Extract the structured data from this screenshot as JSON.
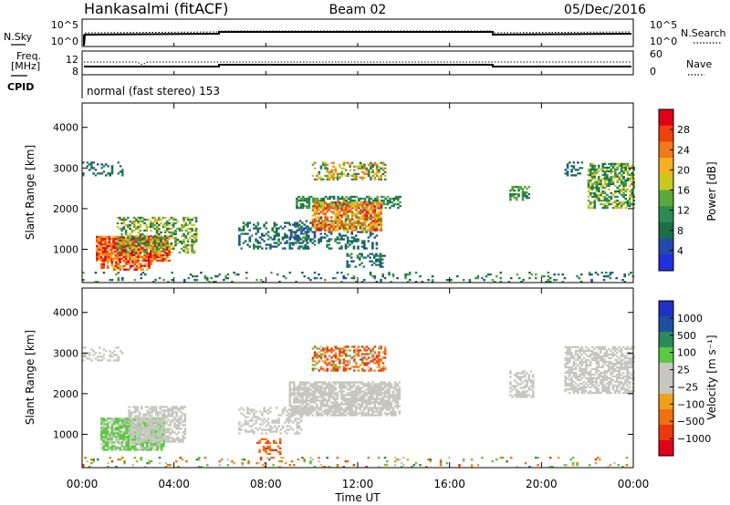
{
  "header": {
    "station": "Hankasalmi (fitACF)",
    "beam": "Beam 02",
    "date": "05/Dec/2016"
  },
  "status": {
    "nsky_label": "N.Sky",
    "nsearch_label": "N.Search",
    "freq_label_line1": "Freq.",
    "freq_label_line2": "[MHz]",
    "nave_label": "Nave",
    "cpid_label": "CPID",
    "cpid_text": "normal (fast stereo) 153",
    "nsky_ticks": [
      "10^5",
      "10^0"
    ],
    "nsearch_ticks": [
      "10^5",
      "10^0"
    ],
    "freq_ticks": [
      "12",
      "8"
    ],
    "nave_ticks": [
      "60",
      "0"
    ]
  },
  "colorbars": {
    "power": {
      "label": "Power [dB]",
      "ticks": [
        "28",
        "24",
        "20",
        "16",
        "12",
        "8",
        "4"
      ],
      "colors": [
        "#e0001a",
        "#f04010",
        "#f07a18",
        "#f5b020",
        "#c8c820",
        "#5aa83a",
        "#2d8a52",
        "#1a6f46",
        "#234aa8",
        "#2030e0"
      ]
    },
    "velocity": {
      "label": "Velocity [m s⁻¹]",
      "ticks": [
        "1000",
        "500",
        "100",
        "25",
        "−25",
        "−100",
        "−500",
        "−1000"
      ],
      "colors": [
        "#2030c8",
        "#1f4fa0",
        "#2c8a5a",
        "#5cc840",
        "#c7c7c0",
        "#c7c7c0",
        "#f0a018",
        "#f07010",
        "#e83a10",
        "#e0001a"
      ]
    }
  },
  "chart_data": {
    "type": "heatmap",
    "xlabel": "Time UT",
    "ylabel": "Slant Range [km]",
    "x_ticks": [
      "00:00",
      "04:00",
      "08:00",
      "12:00",
      "16:00",
      "20:00",
      "00:00"
    ],
    "x_range_hours": [
      0,
      24
    ],
    "y_ticks": [
      "1000",
      "2000",
      "3000",
      "4000"
    ],
    "y_range_km": [
      180,
      4600
    ],
    "panels": [
      {
        "name": "power",
        "regions": [
          {
            "t": [
              0.6,
              3.8
            ],
            "r": [
              700,
              1300
            ],
            "dens": 0.85,
            "levels": [
              18,
              30
            ]
          },
          {
            "t": [
              1.5,
              5.0
            ],
            "r": [
              900,
              1800
            ],
            "dens": 0.45,
            "levels": [
              6,
              20
            ]
          },
          {
            "t": [
              0.8,
              3.0
            ],
            "r": [
              480,
              700
            ],
            "dens": 0.6,
            "levels": [
              16,
              30
            ]
          },
          {
            "t": [
              0.0,
              1.8
            ],
            "r": [
              2800,
              3150
            ],
            "dens": 0.3,
            "levels": [
              4,
              10
            ]
          },
          {
            "t": [
              6.8,
              9.8
            ],
            "r": [
              1000,
              1650
            ],
            "dens": 0.35,
            "levels": [
              4,
              10
            ]
          },
          {
            "t": [
              9.0,
              12.8
            ],
            "r": [
              1000,
              1700
            ],
            "dens": 0.3,
            "levels": [
              4,
              10
            ]
          },
          {
            "t": [
              9.3,
              13.8
            ],
            "r": [
              2000,
              2300
            ],
            "dens": 0.55,
            "levels": [
              6,
              14
            ]
          },
          {
            "t": [
              10.0,
              13.0
            ],
            "r": [
              1450,
              2150
            ],
            "dens": 0.7,
            "levels": [
              14,
              28
            ]
          },
          {
            "t": [
              10.0,
              13.2
            ],
            "r": [
              2700,
              3150
            ],
            "dens": 0.45,
            "levels": [
              8,
              24
            ]
          },
          {
            "t": [
              11.5,
              13.2
            ],
            "r": [
              550,
              900
            ],
            "dens": 0.35,
            "levels": [
              4,
              12
            ]
          },
          {
            "t": [
              18.6,
              19.5
            ],
            "r": [
              2200,
              2550
            ],
            "dens": 0.6,
            "levels": [
              6,
              16
            ]
          },
          {
            "t": [
              22.0,
              24.0
            ],
            "r": [
              2000,
              3100
            ],
            "dens": 0.55,
            "levels": [
              6,
              20
            ]
          },
          {
            "t": [
              21.0,
              21.8
            ],
            "r": [
              2800,
              3150
            ],
            "dens": 0.45,
            "levels": [
              4,
              10
            ]
          },
          {
            "t": [
              0.0,
              24.0
            ],
            "r": [
              180,
              420
            ],
            "dens": 0.12,
            "levels": [
              4,
              14
            ]
          }
        ]
      },
      {
        "name": "velocity",
        "regions": [
          {
            "t": [
              0.8,
              3.5
            ],
            "r": [
              600,
              1400
            ],
            "dens": 0.85,
            "levels": [
              25,
              200
            ]
          },
          {
            "t": [
              2.0,
              4.5
            ],
            "r": [
              800,
              1700
            ],
            "dens": 0.6,
            "levels": [
              -20,
              20
            ]
          },
          {
            "t": [
              0.0,
              1.8
            ],
            "r": [
              2800,
              3150
            ],
            "dens": 0.3,
            "levels": [
              -20,
              20
            ]
          },
          {
            "t": [
              6.8,
              9.5
            ],
            "r": [
              1000,
              1650
            ],
            "dens": 0.35,
            "levels": [
              -20,
              20
            ]
          },
          {
            "t": [
              7.5,
              8.6
            ],
            "r": [
              500,
              900
            ],
            "dens": 0.3,
            "levels": [
              -300,
              -100
            ]
          },
          {
            "t": [
              9.0,
              13.8
            ],
            "r": [
              1450,
              2300
            ],
            "dens": 0.75,
            "levels": [
              -20,
              20
            ]
          },
          {
            "t": [
              10.0,
              13.2
            ],
            "r": [
              2550,
              3150
            ],
            "dens": 0.5,
            "levels": [
              -500,
              200
            ]
          },
          {
            "t": [
              18.6,
              19.6
            ],
            "r": [
              1900,
              2550
            ],
            "dens": 0.55,
            "levels": [
              -20,
              20
            ]
          },
          {
            "t": [
              21.0,
              24.0
            ],
            "r": [
              2000,
              3150
            ],
            "dens": 0.6,
            "levels": [
              -20,
              20
            ]
          },
          {
            "t": [
              0.0,
              24.0
            ],
            "r": [
              180,
              420
            ],
            "dens": 0.12,
            "levels": [
              -300,
              300
            ]
          }
        ]
      }
    ]
  }
}
